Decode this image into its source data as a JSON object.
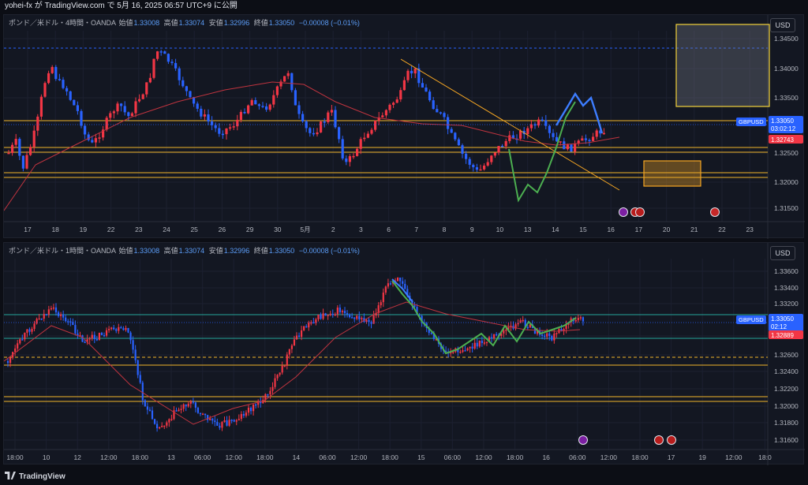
{
  "header": {
    "text": "yohei-fx が TradingView.com で 5月 16, 2025 06:57 UTC+9 に公開"
  },
  "panels": [
    {
      "legend": {
        "symbol": "ポンド／米ドル・4時間・OANDA",
        "open_label": "始値",
        "open": "1.33008",
        "high_label": "高値",
        "high": "1.33074",
        "low_label": "安値",
        "low": "1.32996",
        "close_label": "終値",
        "close": "1.33050",
        "change": "−0.00008 (−0.01%)"
      },
      "currency": "USD",
      "price_axis": [
        "1.34500",
        "1.34000",
        "1.33500",
        "1.32500",
        "1.32000",
        "1.31500"
      ],
      "time_axis": [
        "17",
        "18",
        "19",
        "22",
        "23",
        "24",
        "25",
        "26",
        "29",
        "30",
        "5月",
        "2",
        "3",
        "6",
        "7",
        "8",
        "9",
        "10",
        "13",
        "14",
        "15",
        "16",
        "17",
        "20",
        "21",
        "22",
        "23"
      ],
      "price_tag": {
        "symbol": "GBPUSD",
        "price": "1.33050",
        "countdown": "03:02:12"
      },
      "ma_tag": "1.32743",
      "event_icons": [
        "lightning-event-icon",
        "us-flag-icon",
        "us-flag-icon",
        "uk-flag-icon"
      ]
    },
    {
      "legend": {
        "symbol": "ポンド／米ドル・1時間・OANDA",
        "open_label": "始値",
        "open": "1.33008",
        "high_label": "高値",
        "high": "1.33074",
        "low_label": "安値",
        "low": "1.32996",
        "close_label": "終値",
        "close": "1.33050",
        "change": "−0.00008 (−0.01%)"
      },
      "currency": "USD",
      "price_axis": [
        "1.33600",
        "1.33400",
        "1.33200",
        "1.32800",
        "1.32600",
        "1.32400",
        "1.32200",
        "1.32000",
        "1.31800",
        "1.31600"
      ],
      "time_axis": [
        "18:00",
        "10",
        "12",
        "12:00",
        "18:00",
        "13",
        "06:00",
        "12:00",
        "18:00",
        "14",
        "06:00",
        "12:00",
        "18:00",
        "15",
        "06:00",
        "12:00",
        "18:00",
        "16",
        "06:00",
        "12:00",
        "18:00",
        "17",
        "19",
        "12:00",
        "18:0"
      ],
      "price_tag": {
        "symbol": "GBPUSD",
        "price": "1.33050",
        "countdown": "02:12"
      },
      "ma_tag": "1.32889",
      "event_icons": [
        "lightning-event-icon",
        "us-flag-icon",
        "us-flag-icon"
      ]
    }
  ],
  "footer": {
    "brand": "TradingView"
  },
  "colors": {
    "bull": "#f23645",
    "bear": "#2962ff",
    "ma": "#c0343f",
    "hline": "#f0b429",
    "blue_line": "#3d7dff",
    "green_line": "#4caf50",
    "trendline": "#f5a623",
    "price_tag": "#2962ff",
    "ma_tag": "#f23645",
    "background": "#131722"
  }
}
